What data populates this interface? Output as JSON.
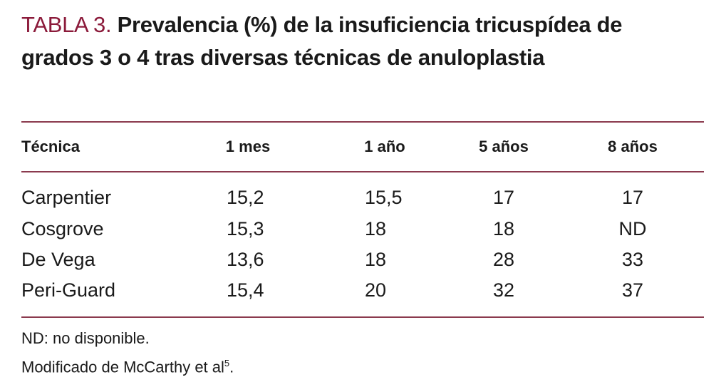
{
  "table": {
    "label": "TABLA 3.",
    "title": "Prevalencia (%) de la insuficiencia tricuspídea de grados 3 o 4 tras diversas técnicas de anuloplastia",
    "header": [
      "Técnica",
      "1 mes",
      "1 año",
      "5 años",
      "8 años"
    ],
    "rows": [
      [
        "Carpentier",
        "15,2",
        "15,5",
        "17",
        "17"
      ],
      [
        "Cosgrove",
        "15,3",
        "18",
        "18",
        "ND"
      ],
      [
        "De Vega",
        "13,6",
        "18",
        "28",
        "33"
      ],
      [
        "Peri-Guard",
        "15,4",
        "20",
        "32",
        "37"
      ]
    ],
    "notes": [
      "ND: no disponible.",
      "Modificado de McCarthy et al"
    ],
    "note_ref": "5",
    "note_end": "."
  }
}
